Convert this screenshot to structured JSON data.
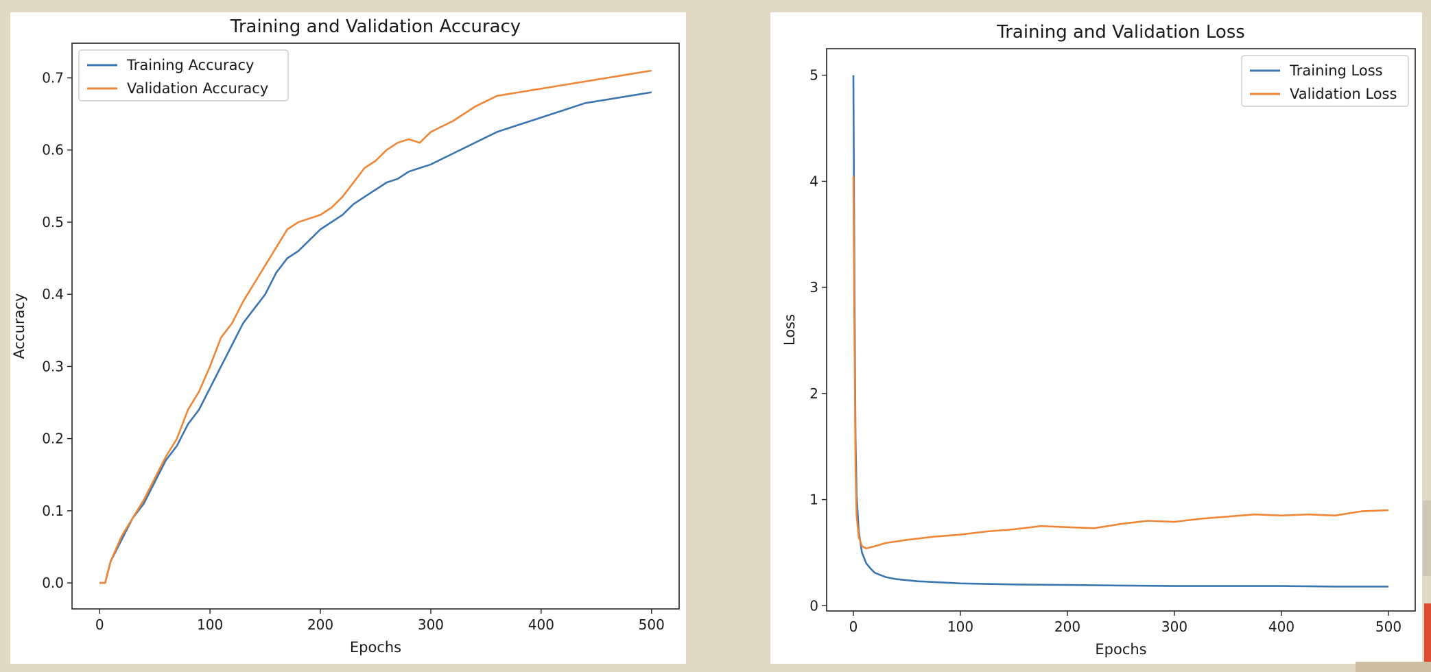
{
  "chart_data": [
    {
      "type": "line",
      "title": "Training and Validation Accuracy",
      "xlabel": "Epochs",
      "ylabel": "Accuracy",
      "xlim": [
        -25,
        525
      ],
      "ylim": [
        -0.036,
        0.748
      ],
      "xticks": [
        0,
        100,
        200,
        300,
        400,
        500
      ],
      "xtick_labels": [
        "0",
        "100",
        "200",
        "300",
        "400",
        "500"
      ],
      "yticks": [
        0.0,
        0.1,
        0.2,
        0.3,
        0.4,
        0.5,
        0.6,
        0.7
      ],
      "ytick_labels": [
        "0.0",
        "0.1",
        "0.2",
        "0.3",
        "0.4",
        "0.5",
        "0.6",
        "0.7"
      ],
      "grid": false,
      "legend": "upper left",
      "series": [
        {
          "name": "Training Accuracy",
          "color": "#3b75af",
          "x": [
            0,
            5,
            10,
            20,
            30,
            40,
            50,
            60,
            70,
            80,
            90,
            100,
            110,
            120,
            130,
            140,
            150,
            160,
            170,
            180,
            190,
            200,
            210,
            220,
            230,
            240,
            250,
            260,
            270,
            280,
            290,
            300,
            320,
            340,
            360,
            380,
            400,
            420,
            440,
            460,
            480,
            500
          ],
          "y": [
            0.0,
            0.0,
            0.03,
            0.06,
            0.09,
            0.11,
            0.14,
            0.17,
            0.19,
            0.22,
            0.24,
            0.27,
            0.3,
            0.33,
            0.36,
            0.38,
            0.4,
            0.43,
            0.45,
            0.46,
            0.475,
            0.49,
            0.5,
            0.51,
            0.525,
            0.535,
            0.545,
            0.555,
            0.56,
            0.57,
            0.575,
            0.58,
            0.595,
            0.61,
            0.625,
            0.635,
            0.645,
            0.655,
            0.665,
            0.67,
            0.675,
            0.68
          ]
        },
        {
          "name": "Validation Accuracy",
          "color": "#ef8636",
          "x": [
            0,
            5,
            10,
            20,
            30,
            40,
            50,
            60,
            70,
            80,
            90,
            100,
            110,
            120,
            130,
            140,
            150,
            160,
            170,
            180,
            190,
            200,
            210,
            220,
            230,
            240,
            250,
            260,
            270,
            280,
            290,
            300,
            320,
            340,
            360,
            380,
            400,
            420,
            440,
            460,
            480,
            500
          ],
          "y": [
            0.0,
            0.0,
            0.03,
            0.065,
            0.09,
            0.115,
            0.145,
            0.175,
            0.2,
            0.24,
            0.265,
            0.3,
            0.34,
            0.36,
            0.39,
            0.415,
            0.44,
            0.465,
            0.49,
            0.5,
            0.505,
            0.51,
            0.52,
            0.535,
            0.555,
            0.575,
            0.585,
            0.6,
            0.61,
            0.615,
            0.61,
            0.625,
            0.64,
            0.66,
            0.675,
            0.68,
            0.685,
            0.69,
            0.695,
            0.7,
            0.705,
            0.71
          ]
        }
      ]
    },
    {
      "type": "line",
      "title": "Training and Validation Loss",
      "xlabel": "Epochs",
      "ylabel": "Loss",
      "xlim": [
        -25,
        525
      ],
      "ylim": [
        -0.05,
        5.25
      ],
      "xticks": [
        0,
        100,
        200,
        300,
        400,
        500
      ],
      "xtick_labels": [
        "0",
        "100",
        "200",
        "300",
        "400",
        "500"
      ],
      "yticks": [
        0,
        1,
        2,
        3,
        4,
        5
      ],
      "ytick_labels": [
        "0",
        "1",
        "2",
        "3",
        "4",
        "5"
      ],
      "grid": false,
      "legend": "upper right",
      "series": [
        {
          "name": "Training Loss",
          "color": "#3b75af",
          "x": [
            0,
            1,
            2,
            3,
            5,
            8,
            12,
            16,
            20,
            30,
            40,
            60,
            80,
            100,
            150,
            200,
            250,
            300,
            350,
            400,
            450,
            500
          ],
          "y": [
            5.0,
            3.0,
            1.6,
            1.05,
            0.7,
            0.5,
            0.4,
            0.35,
            0.31,
            0.27,
            0.25,
            0.23,
            0.22,
            0.21,
            0.2,
            0.195,
            0.19,
            0.185,
            0.185,
            0.185,
            0.18,
            0.18
          ]
        },
        {
          "name": "Validation Loss",
          "color": "#ef8636",
          "x": [
            0,
            1,
            2,
            3,
            5,
            8,
            12,
            20,
            30,
            50,
            75,
            100,
            125,
            150,
            175,
            200,
            225,
            250,
            275,
            300,
            325,
            350,
            375,
            400,
            425,
            450,
            475,
            500
          ],
          "y": [
            4.05,
            2.5,
            1.3,
            0.85,
            0.65,
            0.56,
            0.54,
            0.56,
            0.59,
            0.62,
            0.65,
            0.67,
            0.7,
            0.72,
            0.75,
            0.74,
            0.73,
            0.77,
            0.8,
            0.79,
            0.82,
            0.84,
            0.86,
            0.85,
            0.86,
            0.85,
            0.89,
            0.9
          ]
        }
      ]
    }
  ]
}
